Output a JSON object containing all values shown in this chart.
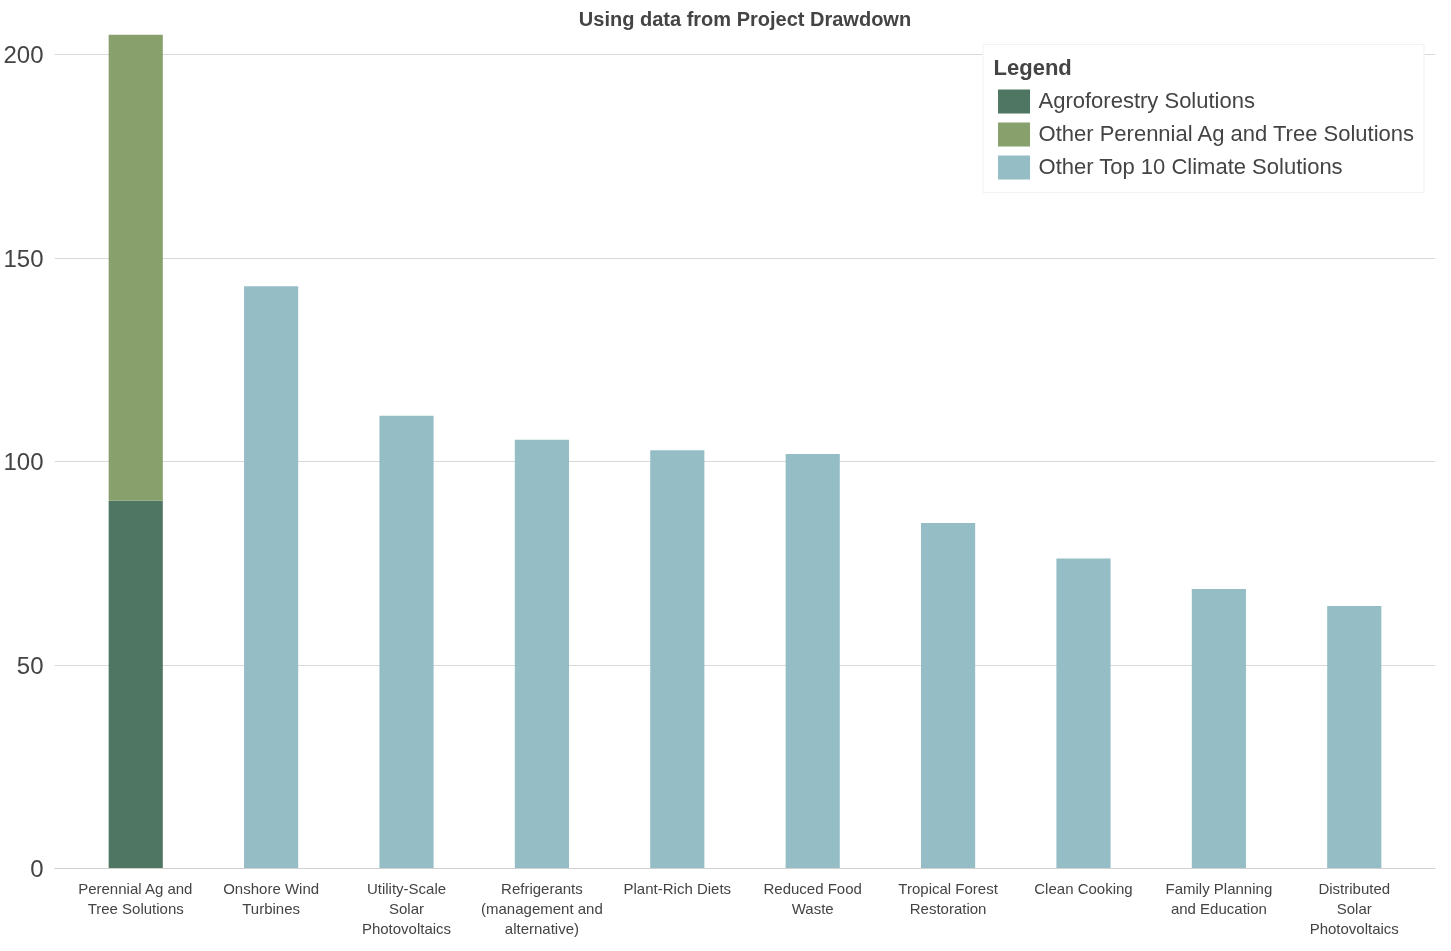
{
  "chart_data": {
    "type": "bar",
    "title": "Using data from Project Drawdown",
    "stacked": true,
    "categories": [
      "Perennial Ag and Tree Solutions",
      "Onshore Wind Turbines",
      "Utility-Scale Solar Photovoltaics",
      "Refrigerants (management and alternative)",
      "Plant-Rich Diets",
      "Reduced Food Waste",
      "Tropical Forest Restoration",
      "Clean Cooking",
      "Family Planning and Education",
      "Distributed Solar Photovoltaics"
    ],
    "series": [
      {
        "name": "Agroforestry Solutions",
        "color": "#4e7662",
        "values": [
          90.4,
          null,
          null,
          null,
          null,
          null,
          null,
          null,
          null,
          null
        ]
      },
      {
        "name": "Other Perennial Ag and Tree Solutions",
        "color": "#87a06c",
        "values": [
          114.6,
          null,
          null,
          null,
          null,
          null,
          null,
          null,
          null,
          null
        ]
      },
      {
        "name": "Other Top 10 Climate Solutions",
        "color": "#94bdc6",
        "values": [
          null,
          143.1,
          111.3,
          105.4,
          102.8,
          101.9,
          84.9,
          76.2,
          68.7,
          64.5
        ]
      }
    ],
    "ylim": [
      0,
      205
    ],
    "yticks": [
      0,
      50,
      100,
      150,
      200
    ],
    "grid": "y",
    "legend": "top right",
    "legend_title": "Legend"
  }
}
